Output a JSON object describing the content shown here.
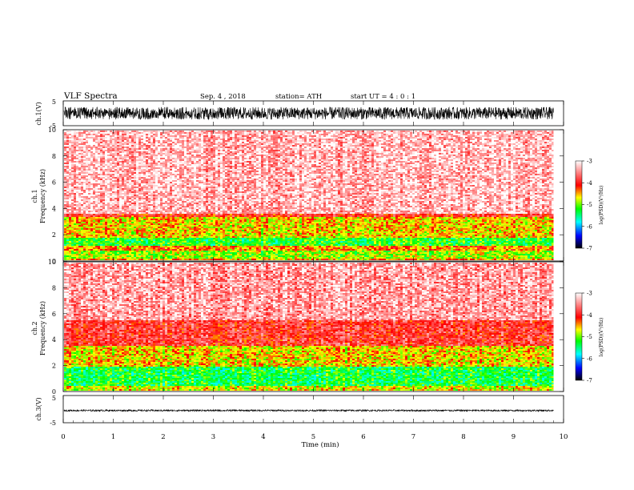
{
  "header": {
    "title": "VLF  Spectra",
    "date": "Sep. 4  , 2018",
    "station": "station= ATH",
    "start": "start  UT  =   4  : 0   : 1"
  },
  "chart_data": [
    {
      "type": "line",
      "name": "ch1-waveform",
      "ylabel": "ch.1(V)",
      "ylim": [
        -5,
        5
      ],
      "yticks": [
        "5",
        "-5"
      ],
      "xlim": [
        0,
        10
      ],
      "x_end": 9.8,
      "amplitude_band": [
        -2.5,
        2.5
      ],
      "color": "#000000"
    },
    {
      "type": "heatmap",
      "name": "ch1-spectrogram",
      "ylabel_line1": "ch.1",
      "ylabel_line2": "Frequency  (kHz)",
      "ylim": [
        0,
        10
      ],
      "yticks": [
        "0",
        "2",
        "4",
        "6",
        "8",
        "10"
      ],
      "xlim": [
        0,
        10
      ],
      "x_end": 9.8,
      "bands": [
        {
          "from": 0,
          "to": 0.3,
          "level": -4.5
        },
        {
          "from": 0.3,
          "to": 0.9,
          "level": -4.9
        },
        {
          "from": 0.9,
          "to": 1.2,
          "level": -4.4
        },
        {
          "from": 1.2,
          "to": 1.8,
          "level": -5.2
        },
        {
          "from": 1.8,
          "to": 3.4,
          "level": -4.6
        },
        {
          "from": 3.4,
          "to": 3.7,
          "level": -4.0
        },
        {
          "from": 3.7,
          "to": 10,
          "level": -3.3
        }
      ],
      "colorbar": {
        "label": "log(PSD)(V²/Hz)",
        "range": [
          -7,
          -3
        ],
        "ticks": [
          "-3",
          "-4",
          "-5",
          "-6",
          "-7"
        ]
      }
    },
    {
      "type": "heatmap",
      "name": "ch2-spectrogram",
      "ylabel_line1": "ch.2",
      "ylabel_line2": "Frequency  (kHz)",
      "ylim": [
        0,
        10
      ],
      "yticks": [
        "0",
        "2",
        "4",
        "6",
        "8",
        "10"
      ],
      "xlim": [
        0,
        10
      ],
      "x_end": 9.8,
      "bands": [
        {
          "from": 0,
          "to": 0.5,
          "level": -4.7
        },
        {
          "from": 0.5,
          "to": 2.0,
          "level": -5.3
        },
        {
          "from": 2.0,
          "to": 3.6,
          "level": -4.6
        },
        {
          "from": 3.6,
          "to": 5.5,
          "level": -3.9
        },
        {
          "from": 5.5,
          "to": 10,
          "level": -3.4
        }
      ],
      "colorbar": {
        "label": "log(PSD)(V²/Hz)",
        "range": [
          -7,
          -3
        ],
        "ticks": [
          "-3",
          "-4",
          "-5",
          "-6",
          "-7"
        ]
      }
    },
    {
      "type": "line",
      "name": "ch3-waveform",
      "ylabel": "ch.3(V)",
      "ylim": [
        -5,
        5
      ],
      "yticks": [
        "5",
        "-5"
      ],
      "xlim": [
        0,
        10
      ],
      "x_end": 9.8,
      "amplitude_band": [
        -0.8,
        -0.2
      ],
      "color": "#000000"
    }
  ],
  "xaxis": {
    "label": "Time  (min)",
    "ticks": [
      "0",
      "1",
      "2",
      "3",
      "4",
      "5",
      "6",
      "7",
      "8",
      "9",
      "10"
    ]
  },
  "colormap": [
    "#000000",
    "#0000ff",
    "#00ffff",
    "#00ff00",
    "#ffff00",
    "#ff0000",
    "#ffffff"
  ]
}
